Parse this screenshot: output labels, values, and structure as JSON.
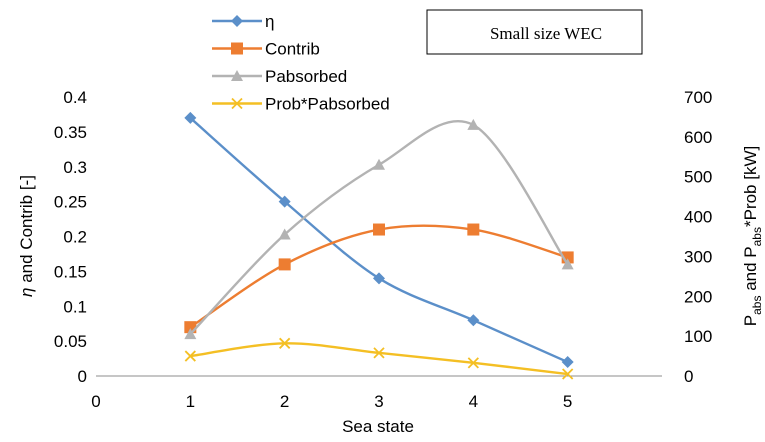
{
  "chart_data": {
    "type": "line",
    "annotation": "Small size WEC",
    "xlabel": "Sea state",
    "ylabel_left": "η and Contrib [-]",
    "ylabel_right": "Pabs and Pabs*Prob [kW]",
    "xlim": [
      0,
      6
    ],
    "xticks": [
      "0",
      "1",
      "2",
      "3",
      "4",
      "5"
    ],
    "ylim_left": [
      0,
      0.4
    ],
    "yticks_left": [
      "0",
      "0.05",
      "0.1",
      "0.15",
      "0.2",
      "0.25",
      "0.3",
      "0.35",
      "0.4"
    ],
    "ylim_right": [
      0,
      700
    ],
    "yticks_right": [
      "0",
      "100",
      "200",
      "300",
      "400",
      "500",
      "600",
      "700"
    ],
    "grid": false,
    "legend_position": "top-center",
    "x": [
      1,
      2,
      3,
      4,
      5
    ],
    "series": [
      {
        "name": "η",
        "axis": "left",
        "color": "#5b8fc9",
        "marker": "diamond",
        "values": [
          0.37,
          0.25,
          0.14,
          0.08,
          0.02
        ]
      },
      {
        "name": "Contrib",
        "axis": "left",
        "color": "#ed7d31",
        "marker": "square",
        "values": [
          0.07,
          0.16,
          0.21,
          0.21,
          0.17
        ]
      },
      {
        "name": "Pabsorbed",
        "axis": "right",
        "color": "#b3b3b3",
        "marker": "triangle",
        "values": [
          105,
          355,
          530,
          630,
          280
        ]
      },
      {
        "name": "Prob*Pabsorbed",
        "axis": "right",
        "color": "#f4bf24",
        "marker": "x",
        "values": [
          50,
          82,
          58,
          33,
          5
        ]
      }
    ]
  }
}
